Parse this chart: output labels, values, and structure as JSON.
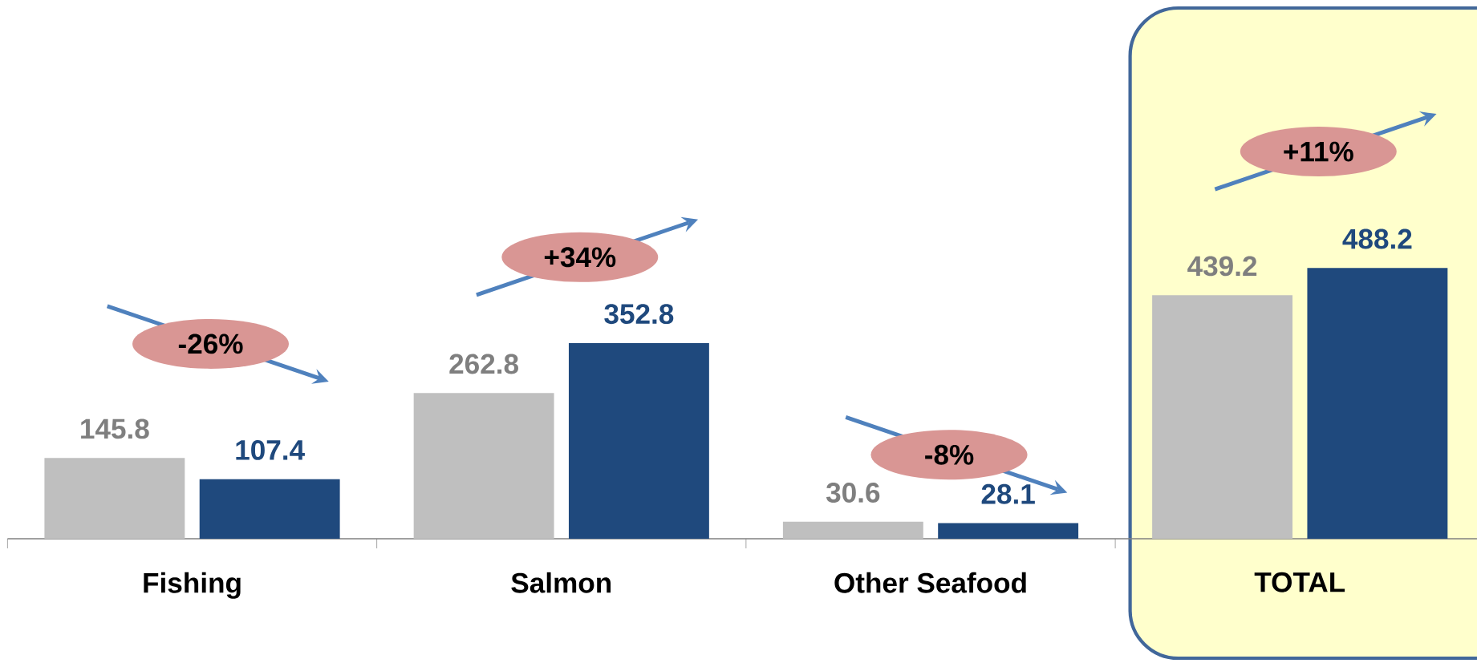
{
  "chart_data": {
    "type": "bar",
    "categories": [
      "Fishing",
      "Salmon",
      "Other Seafood",
      "TOTAL"
    ],
    "series": [
      {
        "color": "#bfbfbf",
        "values": [
          145.8,
          262.8,
          30.6,
          439.2
        ]
      },
      {
        "color": "#1f497d",
        "values": [
          107.4,
          352.8,
          28.1,
          488.2
        ]
      }
    ],
    "data_labels": true,
    "annotations": [
      "-26%",
      "+34%",
      "-8%",
      "+11%"
    ],
    "bands": [
      {
        "axis": "x",
        "from": "TOTAL",
        "to": "TOTAL",
        "color": "#ffffcc"
      }
    ]
  }
}
